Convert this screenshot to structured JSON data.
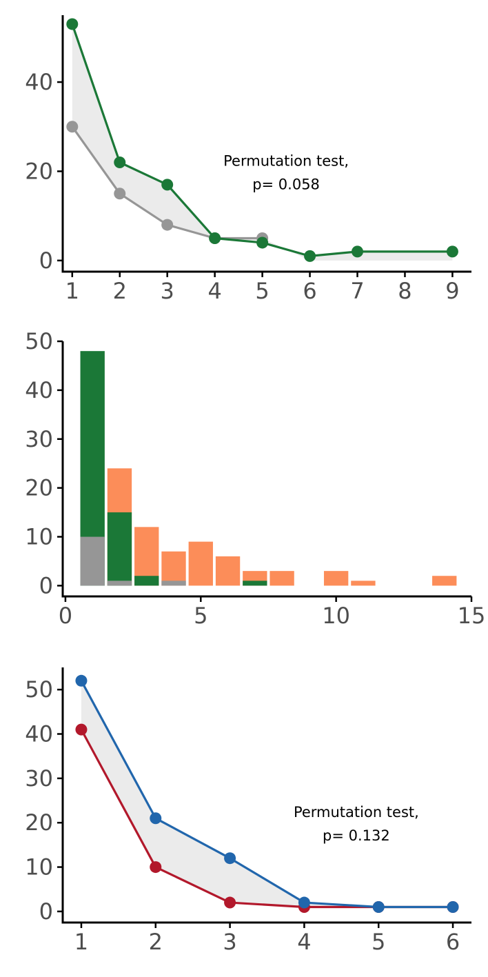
{
  "colors": {
    "green": "#1b7837",
    "gray": "#969696",
    "orange": "#fc8d59",
    "blue": "#2166ac",
    "red": "#b2182b",
    "ribbon": "#ebebeb",
    "axis": "#000000",
    "tick_text": "#4d4d4d"
  },
  "chart_data": [
    {
      "type": "line",
      "title": "",
      "xlabel": "",
      "ylabel": "",
      "xlim": [
        0.8,
        9.4
      ],
      "ylim": [
        -2.5,
        55
      ],
      "x_ticks": [
        1,
        2,
        3,
        4,
        5,
        6,
        7,
        8,
        9
      ],
      "y_ticks": [
        0,
        20,
        40
      ],
      "ribbon_between_series": true,
      "series": [
        {
          "name": "gray",
          "color": "#969696",
          "x": [
            1,
            2,
            3,
            4,
            5
          ],
          "y": [
            30,
            15,
            8,
            5,
            5
          ]
        },
        {
          "name": "green",
          "color": "#1b7837",
          "x": [
            1,
            2,
            3,
            4,
            5,
            6,
            7,
            9
          ],
          "y": [
            53,
            22,
            17,
            5,
            4,
            1,
            2,
            2
          ]
        }
      ],
      "annotation": {
        "line1": "Permutation test,",
        "line2": "p= 0.058",
        "x": 5.5,
        "y": 20
      }
    },
    {
      "type": "bar",
      "title": "",
      "xlabel": "",
      "ylabel": "",
      "xlim": [
        -0.1,
        15
      ],
      "ylim": [
        -2.2,
        50
      ],
      "x_ticks": [
        0,
        5,
        10,
        15
      ],
      "y_ticks": [
        0,
        10,
        20,
        30,
        40,
        50
      ],
      "bar_width": 0.9,
      "layers": [
        {
          "name": "orange",
          "color": "#fc8d59",
          "x": [
            2,
            3,
            4,
            5,
            6,
            7,
            8,
            10,
            11,
            14
          ],
          "values": [
            24,
            12,
            7,
            9,
            6,
            3,
            3,
            3,
            1,
            2
          ]
        },
        {
          "name": "green",
          "color": "#1b7837",
          "x": [
            1,
            2,
            3,
            7
          ],
          "values": [
            48,
            15,
            2,
            1
          ]
        },
        {
          "name": "gray",
          "color": "#969696",
          "x": [
            1,
            2,
            4
          ],
          "values": [
            10,
            1,
            1
          ]
        }
      ]
    },
    {
      "type": "line",
      "title": "",
      "xlabel": "",
      "ylabel": "",
      "xlim": [
        0.75,
        6.25
      ],
      "ylim": [
        -2.5,
        55
      ],
      "x_ticks": [
        1,
        2,
        3,
        4,
        5,
        6
      ],
      "y_ticks": [
        0,
        10,
        20,
        30,
        40,
        50
      ],
      "ribbon_between_series": true,
      "series": [
        {
          "name": "red",
          "color": "#b2182b",
          "x": [
            1,
            2,
            3,
            4,
            5,
            6
          ],
          "y": [
            41,
            10,
            2,
            1,
            1,
            1
          ]
        },
        {
          "name": "blue",
          "color": "#2166ac",
          "x": [
            1,
            2,
            3,
            4,
            5,
            6
          ],
          "y": [
            52,
            21,
            12,
            2,
            1,
            1
          ]
        }
      ],
      "annotation": {
        "line1": "Permutation test,",
        "line2": "p= 0.132",
        "x": 4.7,
        "y": 20
      }
    }
  ]
}
